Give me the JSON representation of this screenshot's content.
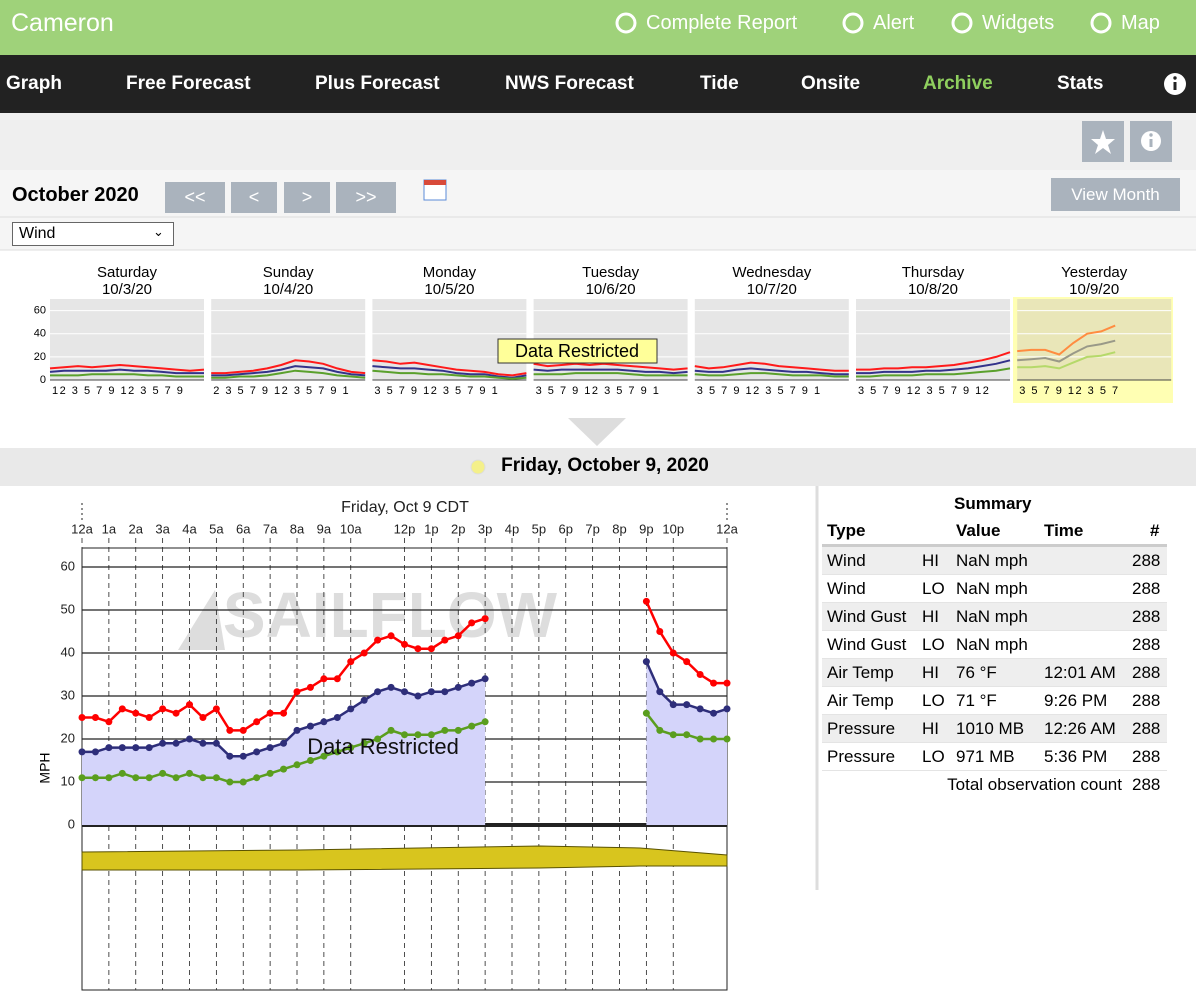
{
  "header": {
    "title": "Cameron",
    "links": [
      "Complete Report",
      "Alert",
      "Widgets",
      "Map"
    ]
  },
  "nav": {
    "items": [
      "Graph",
      "Free Forecast",
      "Plus Forecast",
      "NWS Forecast",
      "Tide",
      "Onsite",
      "Archive",
      "Stats"
    ]
  },
  "toolbar": {
    "month": "October 2020",
    "buttons": [
      "<<",
      "<",
      ">",
      ">>"
    ],
    "view_month": "View Month",
    "select": "Wind"
  },
  "week": {
    "ylim": [
      0,
      70
    ],
    "yticks": [
      0,
      20,
      40,
      60
    ],
    "restricted": "Data Restricted",
    "days": [
      {
        "name": "Saturday",
        "date": "10/3/20",
        "xlabels": "12 3 5 7 9 12 3 5 7 9",
        "series": [
          {
            "color": "#ff1a1a",
            "values": [
              10,
              11,
              12,
              11,
              12,
              13,
              12,
              11,
              10,
              9,
              8,
              9
            ]
          },
          {
            "color": "#33338a",
            "values": [
              7,
              8,
              8,
              8,
              8,
              9,
              8,
              8,
              7,
              6,
              6,
              6
            ]
          },
          {
            "color": "#5aa02c",
            "values": [
              4,
              4,
              4,
              5,
              5,
              5,
              5,
              4,
              4,
              3,
              3,
              3
            ]
          }
        ]
      },
      {
        "name": "Sunday",
        "date": "10/4/20",
        "xlabels": "2 3 5 7 9 12 3 5 7 9 1",
        "series": [
          {
            "color": "#ff1a1a",
            "values": [
              6,
              6,
              7,
              8,
              10,
              13,
              17,
              16,
              14,
              10,
              7,
              6
            ]
          },
          {
            "color": "#33338a",
            "values": [
              4,
              4,
              5,
              6,
              7,
              9,
              12,
              11,
              10,
              7,
              5,
              4
            ]
          },
          {
            "color": "#5aa02c",
            "values": [
              2,
              2,
              3,
              3,
              4,
              6,
              8,
              7,
              6,
              4,
              3,
              2
            ]
          }
        ]
      },
      {
        "name": "Monday",
        "date": "10/5/20",
        "xlabels": "3 5 7 9 12 3 5 7 9 1",
        "series": [
          {
            "color": "#ff1a1a",
            "values": [
              17,
              16,
              14,
              15,
              13,
              11,
              9,
              8,
              7,
              5,
              4,
              6
            ]
          },
          {
            "color": "#33338a",
            "values": [
              12,
              11,
              10,
              10,
              9,
              8,
              6,
              5,
              5,
              3,
              2,
              4
            ]
          },
          {
            "color": "#5aa02c",
            "values": [
              8,
              7,
              6,
              6,
              5,
              5,
              4,
              3,
              3,
              2,
              1,
              2
            ]
          }
        ]
      },
      {
        "name": "Tuesday",
        "date": "10/6/20",
        "xlabels": "3 5 7 9 12 3 5 7 9 1",
        "series": [
          {
            "color": "#ff1a1a",
            "values": [
              14,
              12,
              13,
              14,
              13,
              14,
              13,
              12,
              11,
              10,
              9,
              10
            ]
          },
          {
            "color": "#33338a",
            "values": [
              9,
              8,
              9,
              9,
              9,
              9,
              9,
              8,
              7,
              7,
              6,
              7
            ]
          },
          {
            "color": "#5aa02c",
            "values": [
              5,
              5,
              5,
              6,
              6,
              6,
              6,
              5,
              4,
              4,
              4,
              4
            ]
          }
        ]
      },
      {
        "name": "Wednesday",
        "date": "10/7/20",
        "xlabels": "3 5 7 9 12 3 5 7 9 1",
        "series": [
          {
            "color": "#ff1a1a",
            "values": [
              12,
              10,
              11,
              13,
              15,
              14,
              12,
              11,
              10,
              9,
              8,
              8
            ]
          },
          {
            "color": "#33338a",
            "values": [
              8,
              7,
              7,
              9,
              10,
              9,
              8,
              7,
              7,
              6,
              5,
              5
            ]
          },
          {
            "color": "#5aa02c",
            "values": [
              5,
              4,
              4,
              5,
              6,
              6,
              5,
              4,
              4,
              4,
              3,
              3
            ]
          }
        ]
      },
      {
        "name": "Thursday",
        "date": "10/8/20",
        "xlabels": "3 5 7 9 12 3 5 7 9 12",
        "series": [
          {
            "color": "#ff1a1a",
            "values": [
              9,
              9,
              10,
              10,
              11,
              11,
              12,
              13,
              15,
              17,
              20,
              24
            ]
          },
          {
            "color": "#33338a",
            "values": [
              6,
              6,
              7,
              7,
              7,
              8,
              8,
              9,
              10,
              12,
              14,
              17
            ]
          },
          {
            "color": "#5aa02c",
            "values": [
              3,
              3,
              4,
              4,
              4,
              5,
              5,
              5,
              6,
              7,
              8,
              10
            ]
          }
        ]
      },
      {
        "name": "Yesterday",
        "date": "10/9/20",
        "xlabels": "3 5 7 9 12 3 5 7",
        "series": [
          {
            "color": "#ff8c40",
            "values": [
              25,
              26,
              26,
              22,
              32,
              40,
              42,
              47,
              null,
              null,
              null,
              null
            ]
          },
          {
            "color": "#999988",
            "values": [
              17,
              18,
              19,
              16,
              23,
              29,
              31,
              34,
              null,
              null,
              null,
              null
            ]
          },
          {
            "color": "#b5d96a",
            "values": [
              11,
              11,
              12,
              10,
              15,
              20,
              21,
              24,
              null,
              null,
              null,
              null
            ]
          }
        ]
      }
    ]
  },
  "day_title": "Friday, October 9, 2020",
  "chart_data": {
    "type": "line",
    "title": "Friday, Oct 9 CDT",
    "ylabel": "MPH",
    "watermark": "SAILFLOW",
    "annotation": "Data Restricted",
    "x": [
      0,
      0.5,
      1,
      1.5,
      2,
      2.5,
      3,
      3.5,
      4,
      4.5,
      5,
      5.5,
      6,
      6.5,
      7,
      7.5,
      8,
      8.5,
      9,
      9.5,
      10,
      10.5,
      11,
      11.5,
      12,
      12.5,
      13,
      13.5,
      14,
      14.5,
      15,
      15.5,
      16,
      16.5,
      17,
      17.5,
      18,
      18.5,
      19,
      19.5,
      20,
      20.5,
      21,
      21.5,
      22,
      22.5,
      23,
      23.5,
      24
    ],
    "xlim": [
      0,
      24
    ],
    "xticks": [
      {
        "value": 0,
        "label": "12a"
      },
      {
        "value": 1,
        "label": "1a"
      },
      {
        "value": 2,
        "label": "2a"
      },
      {
        "value": 3,
        "label": "3a"
      },
      {
        "value": 4,
        "label": "4a"
      },
      {
        "value": 5,
        "label": "5a"
      },
      {
        "value": 6,
        "label": "6a"
      },
      {
        "value": 7,
        "label": "7a"
      },
      {
        "value": 8,
        "label": "8a"
      },
      {
        "value": 9,
        "label": "9a"
      },
      {
        "value": 10,
        "label": "10a"
      },
      {
        "value": 12,
        "label": "12p"
      },
      {
        "value": 13,
        "label": "1p"
      },
      {
        "value": 14,
        "label": "2p"
      },
      {
        "value": 15,
        "label": "3p"
      },
      {
        "value": 16,
        "label": "4p"
      },
      {
        "value": 17,
        "label": "5p"
      },
      {
        "value": 18,
        "label": "6p"
      },
      {
        "value": 19,
        "label": "7p"
      },
      {
        "value": 20,
        "label": "8p"
      },
      {
        "value": 21,
        "label": "9p"
      },
      {
        "value": 22,
        "label": "10p"
      },
      {
        "value": 24,
        "label": "12a"
      }
    ],
    "ylim": [
      0,
      64
    ],
    "yticks": [
      0,
      10,
      20,
      30,
      40,
      50,
      60
    ],
    "series": [
      {
        "color": "#ff0000",
        "values": [
          25,
          25,
          24,
          27,
          26,
          25,
          27,
          26,
          28,
          25,
          27,
          22,
          22,
          24,
          26,
          26,
          31,
          32,
          34,
          34,
          38,
          40,
          43,
          44,
          42,
          41,
          41,
          43,
          44,
          47,
          48,
          null,
          null,
          null,
          null,
          null,
          null,
          null,
          null,
          null,
          null,
          null,
          52,
          45,
          40,
          38,
          35,
          33,
          33
        ]
      },
      {
        "color": "#2e2e7a",
        "fill": "#d4d4fa",
        "values": [
          17,
          17,
          18,
          18,
          18,
          18,
          19,
          19,
          20,
          19,
          19,
          16,
          16,
          17,
          18,
          19,
          22,
          23,
          24,
          25,
          27,
          29,
          31,
          32,
          31,
          30,
          31,
          31,
          32,
          33,
          34,
          null,
          null,
          null,
          null,
          null,
          null,
          null,
          null,
          null,
          null,
          null,
          38,
          31,
          28,
          28,
          27,
          26,
          27
        ]
      },
      {
        "color": "#5a9e1e",
        "values": [
          11,
          11,
          11,
          12,
          11,
          11,
          12,
          11,
          12,
          11,
          11,
          10,
          10,
          11,
          12,
          13,
          14,
          15,
          16,
          17,
          18,
          19,
          20,
          22,
          21,
          21,
          21,
          22,
          22,
          23,
          24,
          null,
          null,
          null,
          null,
          null,
          null,
          null,
          null,
          null,
          null,
          null,
          26,
          22,
          21,
          21,
          20,
          20,
          20
        ]
      }
    ]
  },
  "summary": {
    "title": "Summary",
    "columns": [
      "Type",
      "Value",
      "Time",
      "#"
    ],
    "rows": [
      [
        "Wind",
        "HI",
        "NaN mph",
        null,
        288
      ],
      [
        "Wind",
        "LO",
        "NaN mph",
        null,
        288
      ],
      [
        "Wind Gust",
        "HI",
        "NaN mph",
        null,
        288
      ],
      [
        "Wind Gust",
        "LO",
        "NaN mph",
        null,
        288
      ],
      [
        "Air Temp",
        "HI",
        "76 °F",
        "12:01 AM",
        288
      ],
      [
        "Air Temp",
        "LO",
        "71 °F",
        "9:26 PM",
        288
      ],
      [
        "Pressure",
        "HI",
        "1010 MB",
        "12:26 AM",
        288
      ],
      [
        "Pressure",
        "LO",
        "971 MB",
        "5:36 PM",
        288
      ]
    ],
    "total": {
      "label": "Total observation count",
      "value": 288
    }
  }
}
